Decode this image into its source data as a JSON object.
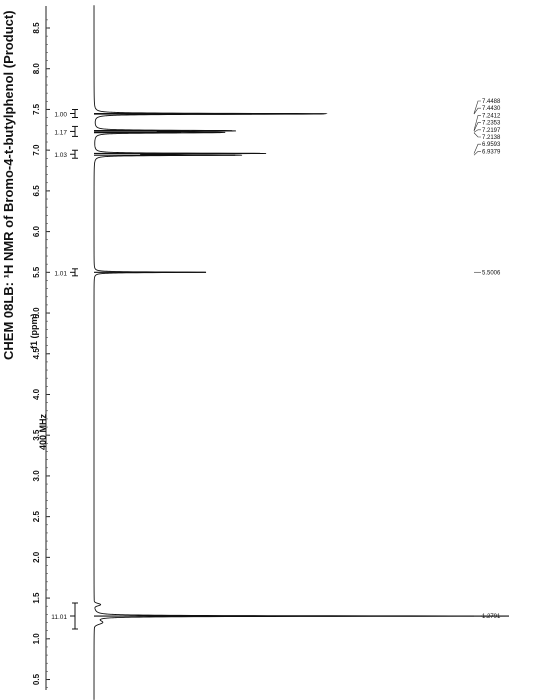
{
  "chart_data": {
    "type": "line",
    "title": "CHEM 08LB: ¹H NMR of Bromo-4-t-butylphenol (Product)",
    "frequency": "400 MHz",
    "axis_label": "f1 (ppm)",
    "axis_range": [
      8.7,
      0.3
    ],
    "axis_ticks": [
      "8.5",
      "8.0",
      "7.5",
      "7.0",
      "6.5",
      "6.0",
      "5.5",
      "5.0",
      "4.5",
      "4.0",
      "3.5",
      "3.0",
      "2.5",
      "2.0",
      "1.5",
      "1.0",
      "0.5"
    ],
    "peaks": [
      {
        "ppm": 7.4488,
        "intensity": 0.4
      },
      {
        "ppm": 7.443,
        "intensity": 0.38
      },
      {
        "ppm": 7.2412,
        "intensity": 0.22
      },
      {
        "ppm": 7.2353,
        "intensity": 0.23
      },
      {
        "ppm": 7.2197,
        "intensity": 0.21
      },
      {
        "ppm": 7.2138,
        "intensity": 0.2
      },
      {
        "ppm": 6.9593,
        "intensity": 0.4
      },
      {
        "ppm": 6.9379,
        "intensity": 0.34
      },
      {
        "ppm": 5.5006,
        "intensity": 0.27
      },
      {
        "ppm": 1.2791,
        "intensity": 1.0
      }
    ],
    "peak_labels": [
      "7.4488",
      "7.4430",
      "7.2412",
      "7.2353",
      "7.2197",
      "7.2138",
      "6.9593",
      "6.9379",
      "5.5006",
      "1.2791"
    ],
    "integrals": [
      {
        "ppm": 7.45,
        "value": "1.00"
      },
      {
        "ppm": 7.23,
        "value": "1.17"
      },
      {
        "ppm": 6.95,
        "value": "1.03"
      },
      {
        "ppm": 5.5,
        "value": "1.01"
      },
      {
        "ppm": 1.28,
        "value": "11.01"
      }
    ]
  }
}
